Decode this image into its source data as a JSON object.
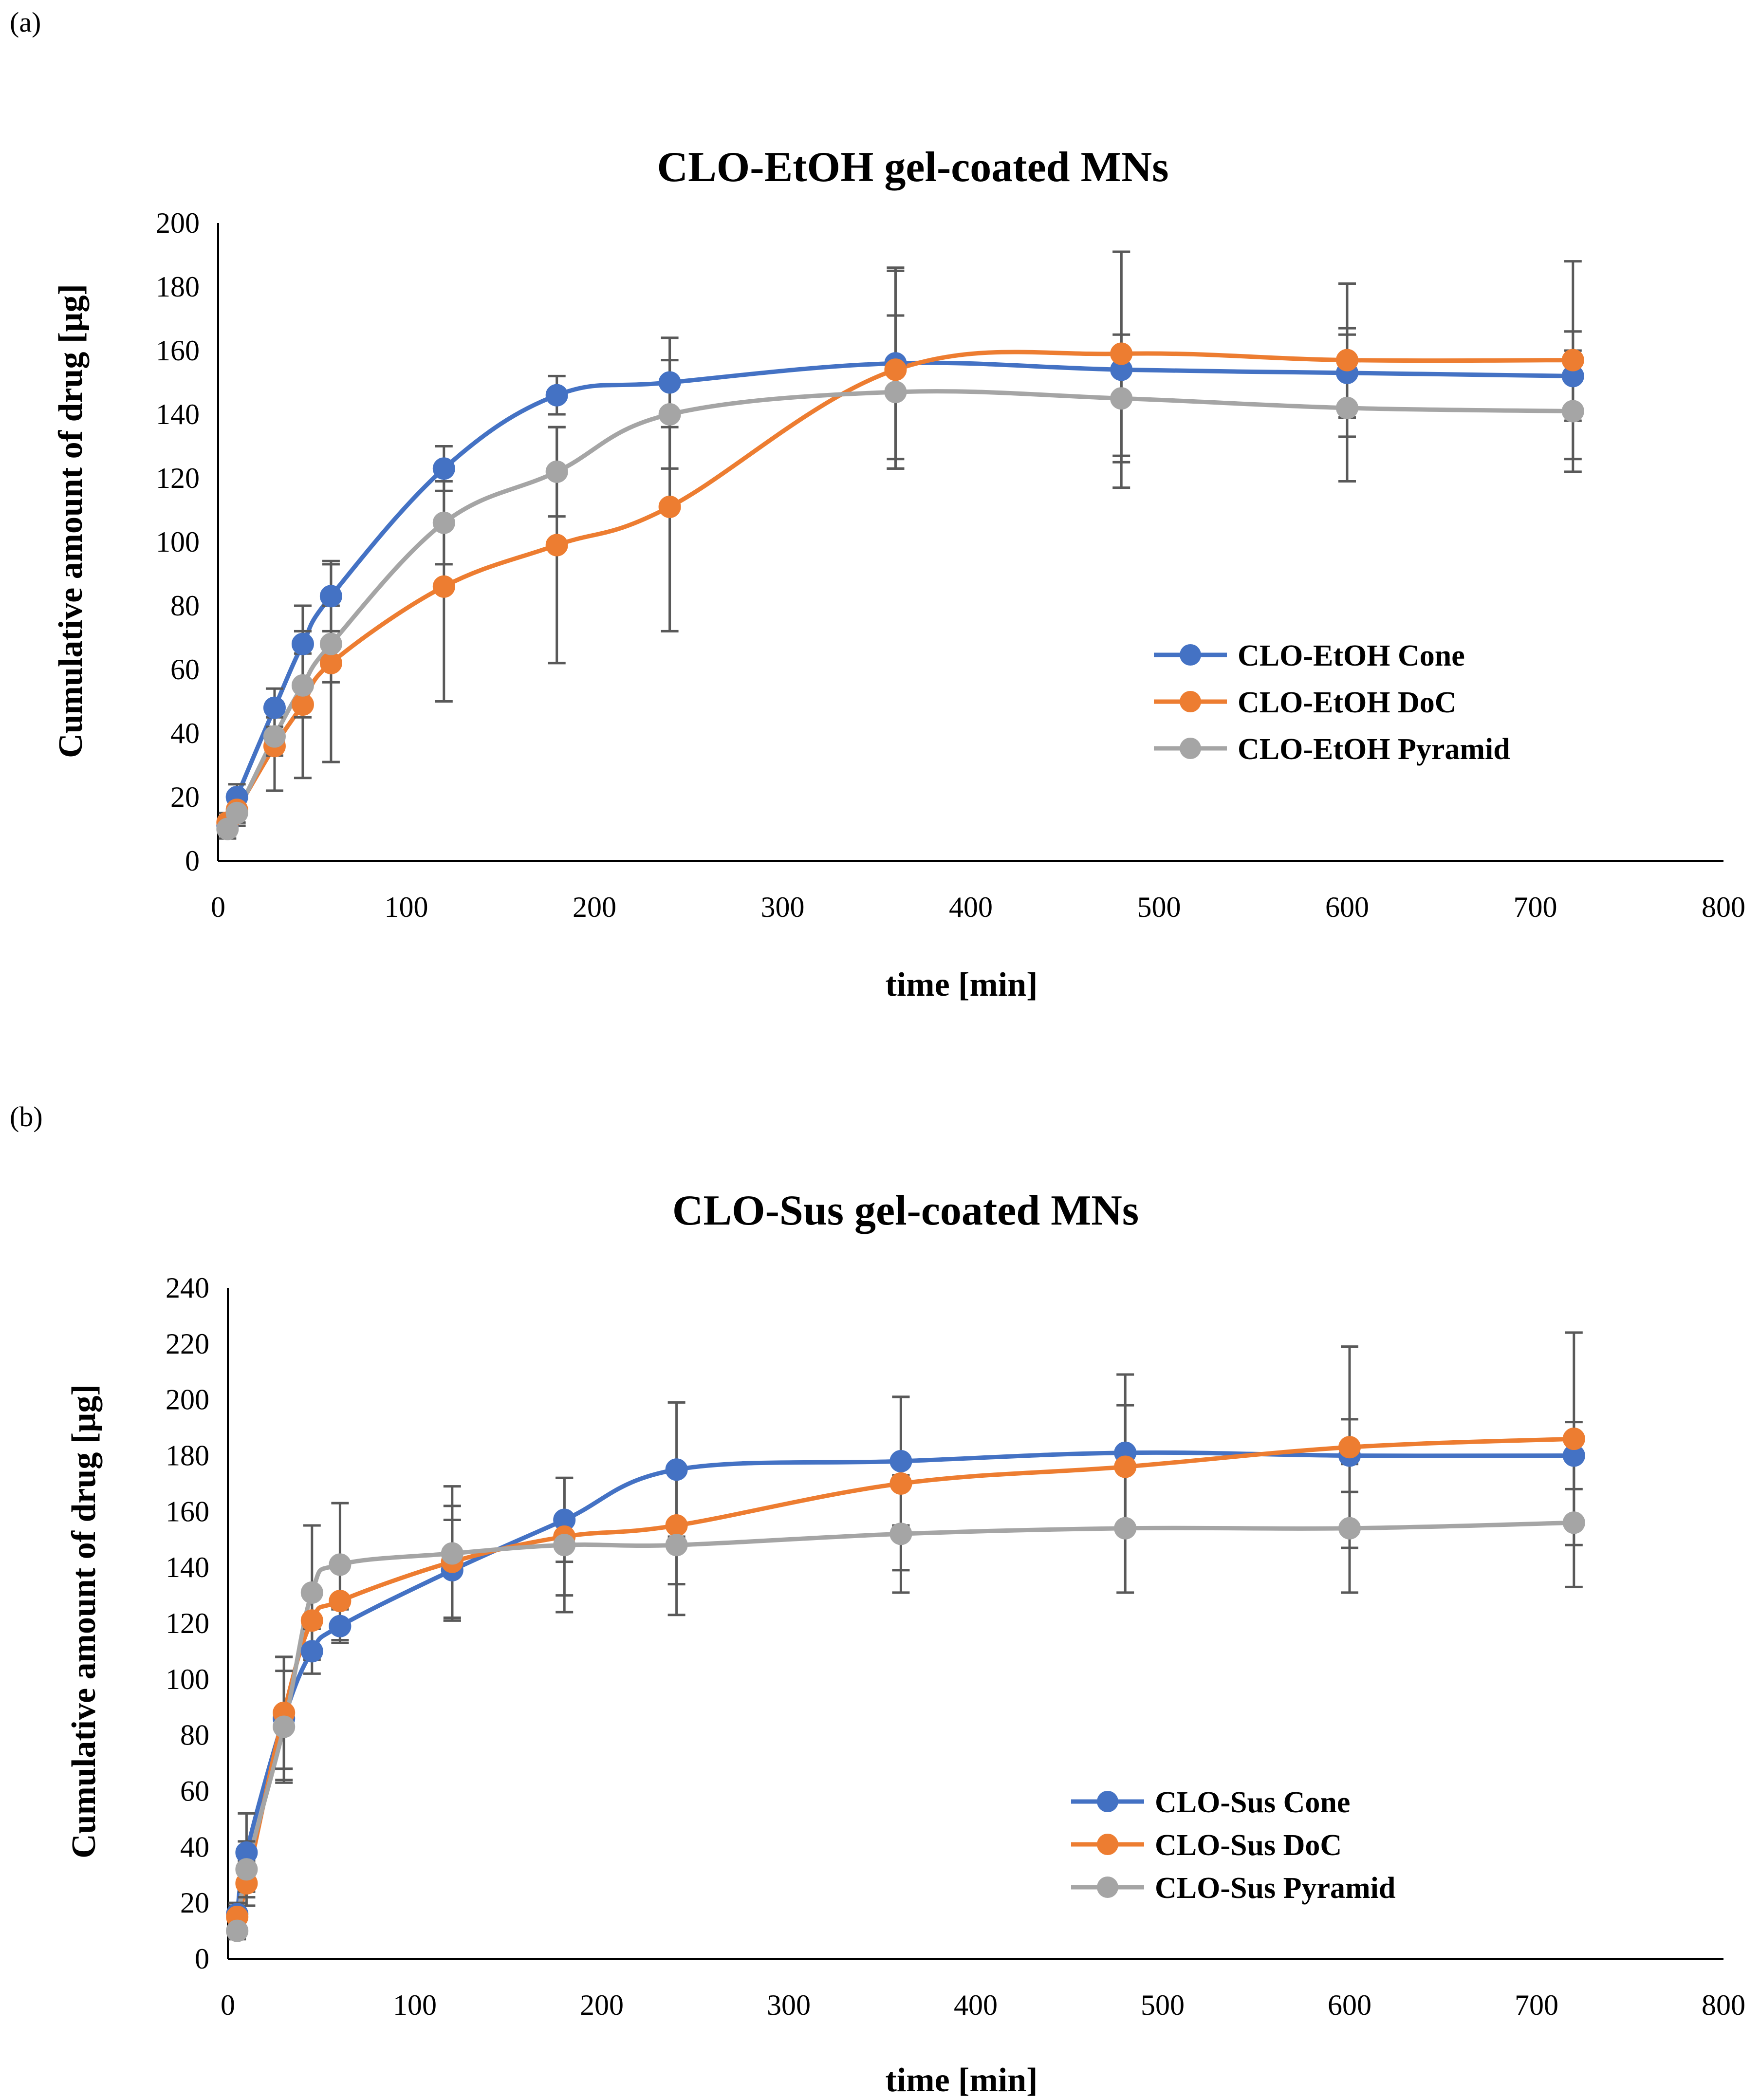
{
  "panels": [
    {
      "label": "(a)"
    },
    {
      "label": "(b)"
    }
  ],
  "chart_data": [
    {
      "type": "line",
      "title": "CLO-EtOH gel-coated MNs",
      "xlabel": "time [min]",
      "ylabel": "Cumulative amount of drug [µg]",
      "xlim": [
        0,
        800
      ],
      "ylim": [
        0,
        200
      ],
      "xticks": [
        0,
        100,
        200,
        300,
        400,
        500,
        600,
        700,
        800
      ],
      "yticks": [
        0,
        20,
        40,
        60,
        80,
        100,
        120,
        140,
        160,
        180,
        200
      ],
      "grid": false,
      "legend": "center-right",
      "x": [
        5,
        10,
        30,
        45,
        60,
        120,
        180,
        240,
        360,
        480,
        600,
        720
      ],
      "series": [
        {
          "name": "CLO-EtOH Cone",
          "color": "#4472C4",
          "values": [
            11,
            20,
            48,
            68,
            83,
            123,
            146,
            150,
            156,
            154,
            153,
            152
          ],
          "errors": [
            3,
            4,
            6,
            12,
            11,
            7,
            6,
            14,
            30,
            37,
            14,
            14
          ]
        },
        {
          "name": "CLO-EtOH DoC",
          "color": "#ED7D31",
          "values": [
            12,
            16,
            36,
            49,
            62,
            86,
            99,
            111,
            154,
            159,
            157,
            157
          ],
          "errors": [
            3,
            4,
            14,
            23,
            31,
            36,
            37,
            39,
            31,
            32,
            24,
            31
          ]
        },
        {
          "name": "CLO-EtOH Pyramid",
          "color": "#A5A5A5",
          "values": [
            10,
            15,
            39,
            55,
            68,
            106,
            122,
            140,
            147,
            145,
            142,
            141
          ],
          "errors": [
            3,
            4,
            6,
            10,
            12,
            13,
            14,
            17,
            24,
            20,
            23,
            19
          ]
        }
      ]
    },
    {
      "type": "line",
      "title": "CLO-Sus gel-coated MNs",
      "xlabel": "time [min]",
      "ylabel": "Cumulative amount of drug [µg]",
      "xlim": [
        0,
        800
      ],
      "ylim": [
        0,
        240
      ],
      "xticks": [
        0,
        100,
        200,
        300,
        400,
        500,
        600,
        700,
        800
      ],
      "yticks": [
        0,
        20,
        40,
        60,
        80,
        100,
        120,
        140,
        160,
        180,
        200,
        220,
        240
      ],
      "grid": false,
      "legend": "bottom-right",
      "x": [
        5,
        10,
        30,
        45,
        60,
        120,
        180,
        240,
        360,
        480,
        600,
        720
      ],
      "series": [
        {
          "name": "CLO-Sus Cone",
          "color": "#4472C4",
          "values": [
            16,
            38,
            86,
            110,
            119,
            139,
            157,
            175,
            178,
            181,
            180,
            180
          ],
          "errors": [
            4,
            14,
            22,
            8,
            6,
            18,
            15,
            24,
            23,
            28,
            13,
            12
          ]
        },
        {
          "name": "CLO-Sus DoC",
          "color": "#ED7D31",
          "values": [
            15,
            27,
            88,
            121,
            128,
            142,
            151,
            155,
            170,
            176,
            183,
            186
          ],
          "errors": [
            4,
            8,
            20,
            10,
            14,
            20,
            21,
            21,
            31,
            22,
            36,
            38
          ]
        },
        {
          "name": "CLO-Sus Pyramid",
          "color": "#A5A5A5",
          "values": [
            10,
            32,
            83,
            131,
            141,
            145,
            148,
            148,
            152,
            154,
            154,
            156
          ],
          "errors": [
            3,
            10,
            20,
            24,
            22,
            24,
            24,
            25,
            21,
            23,
            23,
            23
          ]
        }
      ]
    }
  ]
}
